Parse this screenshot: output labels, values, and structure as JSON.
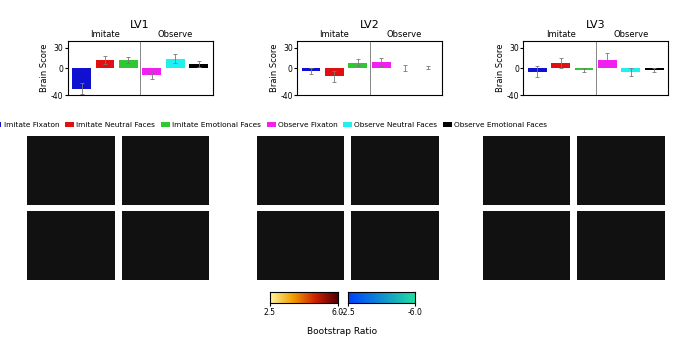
{
  "chart_data": [
    {
      "type": "bar",
      "title": "LV1",
      "y_label": "Brain Score",
      "annotations": [
        "Imitate",
        "Observe"
      ],
      "categories": [
        "Imitate Fixaton",
        "Imitate Neutral Faces",
        "Imitate Emotional Faces",
        "Observe Fixaton",
        "Observe Neutral Faces",
        "Observe Emotional Faces"
      ],
      "values": [
        -30,
        12,
        12,
        -10,
        14,
        6
      ],
      "errors": [
        8,
        6,
        4,
        6,
        7,
        4
      ],
      "colors": [
        "#1010d0",
        "#e01010",
        "#30c830",
        "#f020f0",
        "#20f0f0",
        "#000000"
      ],
      "ylim": [
        -40,
        40
      ],
      "yticks": [
        -40,
        0,
        30
      ],
      "tick_labels": "y",
      "legend": "lower center"
    },
    {
      "type": "bar",
      "title": "LV2",
      "y_label": "Brain Score",
      "annotations": [
        "Imitate",
        "Observe"
      ],
      "categories": [
        null,
        null,
        null,
        null,
        null,
        null
      ],
      "values": [
        -4,
        -12,
        8,
        9,
        0,
        1
      ],
      "errors": [
        4,
        8,
        5,
        6,
        4,
        2
      ],
      "colors": [
        "#1010d0",
        "#e01010",
        "#30c830",
        "#f020f0",
        "#20f0f0",
        "#000000"
      ],
      "ylim": [
        -40,
        40
      ],
      "yticks": [
        -40,
        0,
        30
      ],
      "tick_labels": "y"
    },
    {
      "type": "bar",
      "title": "LV3",
      "y_label": "Brain Score",
      "annotations": [
        "Imitate",
        "Observe"
      ],
      "categories": [
        null,
        null,
        null,
        null,
        null,
        null
      ],
      "values": [
        -5,
        8,
        -2,
        12,
        -5,
        -3
      ],
      "errors": [
        8,
        7,
        3,
        10,
        6,
        3
      ],
      "colors": [
        "#1010d0",
        "#e01010",
        "#30c830",
        "#f020f0",
        "#20f0f0",
        "#000000"
      ],
      "ylim": [
        -40,
        40
      ],
      "yticks": [
        -40,
        0,
        30
      ],
      "tick_labels": "y"
    }
  ],
  "colorbar": {
    "label": "Bootstrap Ratio",
    "positive": {
      "range": [
        2.5,
        6.0
      ],
      "ticks": [
        2.5,
        6.0
      ]
    },
    "negative": {
      "range": [
        -2.5,
        -6.0
      ],
      "ticks": [
        -2.5,
        -6.0
      ]
    }
  }
}
